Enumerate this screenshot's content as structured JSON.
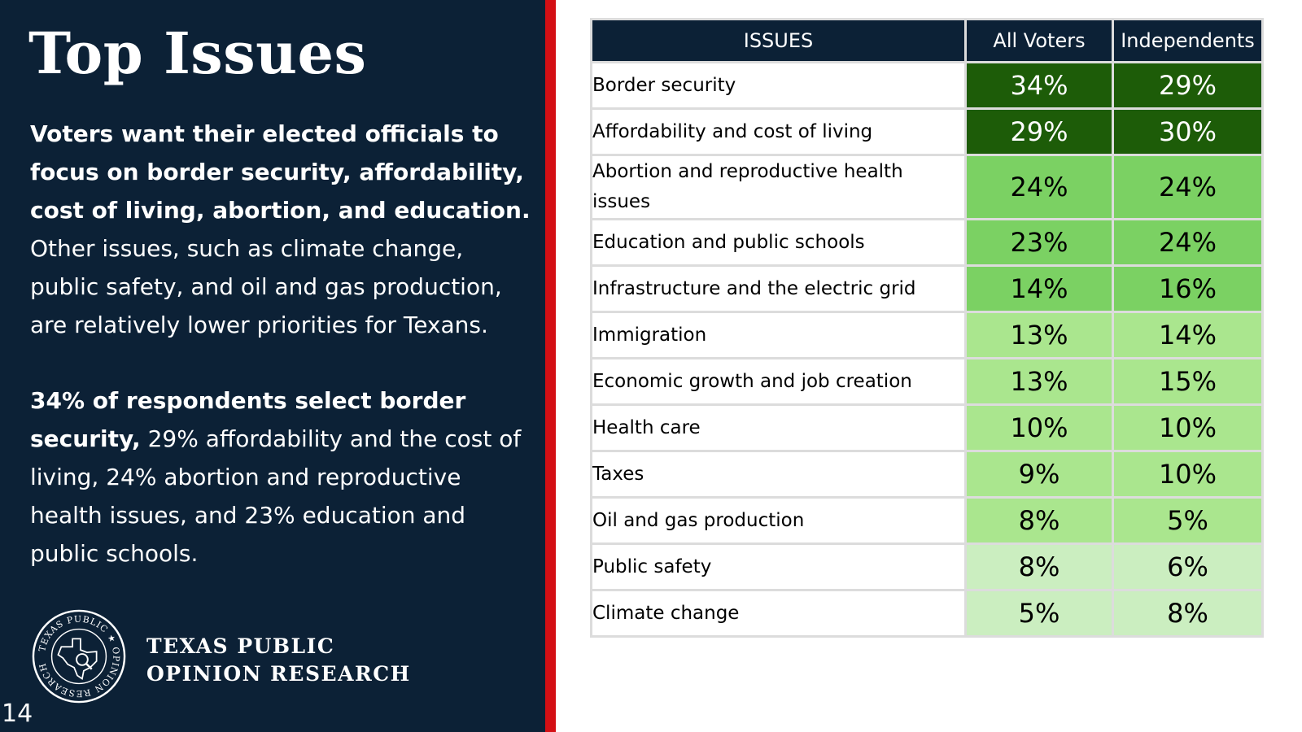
{
  "slide": {
    "title": "Top Issues",
    "page_number": "14",
    "paragraph1": {
      "bold": "Voters want their elected officials to focus on border security, affordability, cost of living, abortion, and education.",
      "regular": " Other issues, such as climate change, public safety, and oil and gas production, are relatively lower priorities for Texans."
    },
    "paragraph2": {
      "bold": "34% of respondents select border security,",
      "regular": " 29% affordability and the cost of living, 24% abortion and reproductive health issues, and 23% education and public schools."
    },
    "logo": {
      "seal_text": "TEXAS PUBLIC OPINION RESEARCH",
      "name_line1": "TEXAS PUBLIC",
      "name_line2": "OPINION RESEARCH"
    }
  },
  "colors": {
    "panel": "#0c2136",
    "accent_red": "#d40f14",
    "dark_green": "#1d5c08",
    "mid_green": "#7bd163",
    "light_green": "#aae68e",
    "pale_green": "#cbeec0"
  },
  "table": {
    "headers": [
      "ISSUES",
      "All Voters",
      "Independents"
    ],
    "rows": [
      {
        "issue": "Border security",
        "all_voters": "34%",
        "independents": "29%"
      },
      {
        "issue": "Affordability and cost of living",
        "all_voters": "29%",
        "independents": "30%"
      },
      {
        "issue": "Abortion and reproductive health issues",
        "all_voters": "24%",
        "independents": "24%"
      },
      {
        "issue": "Education and public schools",
        "all_voters": "23%",
        "independents": "24%"
      },
      {
        "issue": "Infrastructure and the electric grid",
        "all_voters": "14%",
        "independents": "16%"
      },
      {
        "issue": "Immigration",
        "all_voters": "13%",
        "independents": "14%"
      },
      {
        "issue": "Economic growth and job creation",
        "all_voters": "13%",
        "independents": "15%"
      },
      {
        "issue": "Health care",
        "all_voters": "10%",
        "independents": "10%"
      },
      {
        "issue": "Taxes",
        "all_voters": "9%",
        "independents": "10%"
      },
      {
        "issue": "Oil and gas production",
        "all_voters": "8%",
        "independents": "5%"
      },
      {
        "issue": "Public safety",
        "all_voters": "8%",
        "independents": "6%"
      },
      {
        "issue": "Climate change",
        "all_voters": "5%",
        "independents": "8%"
      }
    ]
  }
}
